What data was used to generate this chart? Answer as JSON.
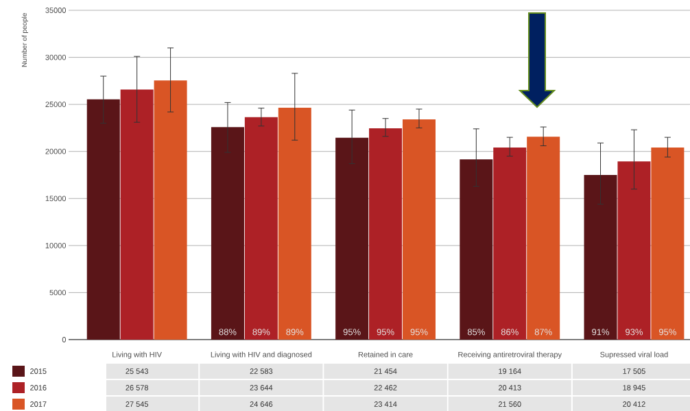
{
  "chart_data": {
    "type": "bar",
    "ylabel": "Number of people",
    "categories": [
      "Living with HIV",
      "Living with HIV and diagnosed",
      "Retained in care",
      "Receiving antiretroviral therapy",
      "Supressed viral load"
    ],
    "series": [
      {
        "name": "2015",
        "color": "#5a1518",
        "values": [
          25543,
          22583,
          21454,
          19164,
          17505
        ],
        "errors": [
          [
            23000,
            28000
          ],
          [
            19900,
            25200
          ],
          [
            18700,
            24400
          ],
          [
            16300,
            22400
          ],
          [
            14400,
            20900
          ]
        ],
        "value_labels": [
          "25 543",
          "22 583",
          "21 454",
          "19 164",
          "17 505"
        ]
      },
      {
        "name": "2016",
        "color": "#ad2126",
        "values": [
          26578,
          23644,
          22462,
          20413,
          18945
        ],
        "errors": [
          [
            23100,
            30100
          ],
          [
            22700,
            24600
          ],
          [
            21600,
            23500
          ],
          [
            19500,
            21500
          ],
          [
            16000,
            22300
          ]
        ],
        "value_labels": [
          "26 578",
          "23 644",
          "22 462",
          "20 413",
          "18 945"
        ]
      },
      {
        "name": "2017",
        "color": "#d95525",
        "values": [
          27545,
          24646,
          23414,
          21560,
          20412
        ],
        "errors": [
          [
            24200,
            31000
          ],
          [
            21200,
            28300
          ],
          [
            22500,
            24500
          ],
          [
            20600,
            22600
          ],
          [
            19400,
            21500
          ]
        ],
        "value_labels": [
          "27 545",
          "24 646",
          "23 414",
          "21 560",
          "20 412"
        ]
      }
    ],
    "annotations": [
      {
        "text": "88%",
        "x": "Living with HIV and diagnosed",
        "y": 0
      },
      {
        "text": "89%",
        "x": "Living with HIV and diagnosed",
        "y": 0
      },
      {
        "text": "89%",
        "x": "Living with HIV and diagnosed",
        "y": 0
      },
      {
        "text": "95%",
        "x": "Retained in care",
        "y": 0
      },
      {
        "text": "95%",
        "x": "Retained in care",
        "y": 0
      },
      {
        "text": "95%",
        "x": "Retained in care",
        "y": 0
      },
      {
        "text": "85%",
        "x": "Receiving antiretroviral therapy",
        "y": 0
      },
      {
        "text": "86%",
        "x": "Receiving antiretroviral therapy",
        "y": 0
      },
      {
        "text": "87%",
        "x": "Receiving antiretroviral therapy",
        "y": 0
      },
      {
        "text": "91%",
        "x": "Supressed viral load",
        "y": 0
      },
      {
        "text": "93%",
        "x": "Supressed viral load",
        "y": 0
      },
      {
        "text": "95%",
        "x": "Supressed viral load",
        "y": 0
      }
    ],
    "ylim": [
      0,
      35000
    ],
    "yticks": [
      0,
      5000,
      10000,
      15000,
      20000,
      25000,
      30000,
      35000
    ],
    "grid": "y",
    "legend": "bottom left"
  }
}
